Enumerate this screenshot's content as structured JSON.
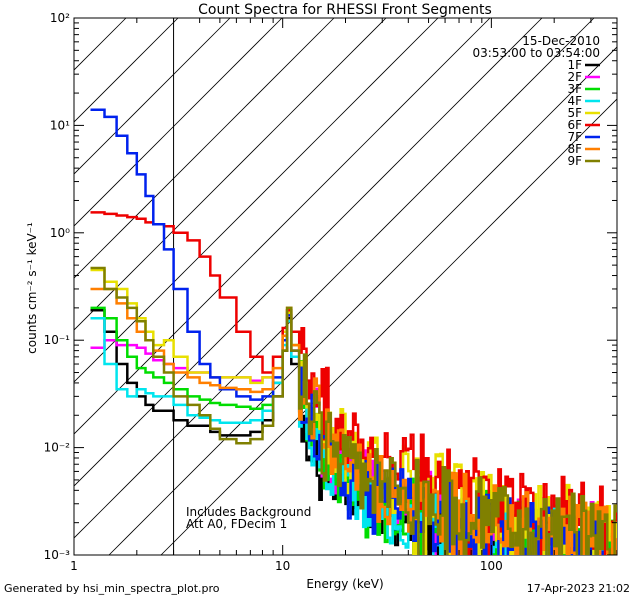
{
  "footer": {
    "left": "Generated by hsi_min_spectra_plot.pro",
    "right": "17-Apr-2023 21:02"
  },
  "chart_data": {
    "type": "line",
    "title": "Count Spectra for RHESSI Front Segments",
    "xlabel": "Energy (keV)",
    "ylabel": "counts cm⁻² s⁻¹ keV⁻¹",
    "xscale": "log",
    "yscale": "log",
    "xlim": [
      1,
      400
    ],
    "ylim": [
      0.001,
      100
    ],
    "x_ticks": [
      "1",
      "10",
      "100"
    ],
    "y_ticks": [
      "10⁻³",
      "10⁻²",
      "10⁻¹",
      "10⁰",
      "10¹",
      "10²"
    ],
    "date": "15-Dec-2010",
    "time_range": "03:53:00 to 03:54:00",
    "annotations": [
      "Includes Background",
      "Att A0, FDecim 1"
    ],
    "hatched_region_xlim": [
      1,
      3
    ],
    "legend_position": "top-right",
    "series": [
      {
        "name": "1F",
        "color": "#000000",
        "x": [
          1.2,
          1.4,
          1.6,
          1.8,
          2,
          2.2,
          2.4,
          2.7,
          3,
          3.5,
          4,
          4.5,
          5,
          6,
          7,
          8,
          9,
          10,
          10.5,
          11,
          12,
          13,
          15,
          17,
          20,
          25,
          30,
          40,
          50,
          60,
          70,
          80,
          100,
          120,
          150,
          200,
          250,
          300,
          350,
          400
        ],
        "y": [
          0.19,
          0.12,
          0.06,
          0.04,
          0.03,
          0.025,
          0.022,
          0.022,
          0.018,
          0.016,
          0.016,
          0.014,
          0.013,
          0.013,
          0.014,
          0.018,
          0.03,
          0.08,
          0.16,
          0.06,
          0.025,
          0.012,
          0.007,
          0.005,
          0.004,
          0.003,
          0.0025,
          0.0022,
          0.002,
          0.0018,
          0.0016,
          0.0015,
          0.0014,
          0.0013,
          0.0012,
          0.0011,
          0.0011,
          0.001,
          0.001,
          0.001
        ]
      },
      {
        "name": "2F",
        "color": "#ff00ff",
        "x": [
          1.2,
          1.4,
          1.6,
          1.8,
          2,
          2.2,
          2.4,
          2.7,
          3,
          3.5,
          4,
          4.5,
          5,
          6,
          7,
          8,
          9,
          10,
          10.5,
          11,
          12,
          13,
          15,
          17,
          20,
          25,
          30,
          40,
          50,
          60,
          70,
          80,
          100,
          120,
          150,
          200,
          250,
          300,
          350,
          400
        ],
        "y": [
          0.085,
          0.1,
          0.09,
          0.09,
          0.085,
          0.075,
          0.065,
          0.06,
          0.055,
          0.05,
          0.05,
          0.045,
          0.045,
          0.045,
          0.042,
          0.045,
          0.07,
          0.12,
          0.17,
          0.08,
          0.04,
          0.02,
          0.011,
          0.008,
          0.006,
          0.004,
          0.0035,
          0.003,
          0.0028,
          0.0025,
          0.0023,
          0.0022,
          0.002,
          0.0019,
          0.0018,
          0.0016,
          0.0015,
          0.0014,
          0.0013,
          0.0012
        ]
      },
      {
        "name": "3F",
        "color": "#00dd00",
        "x": [
          1.2,
          1.4,
          1.6,
          1.8,
          2,
          2.2,
          2.4,
          2.7,
          3,
          3.5,
          4,
          4.5,
          5,
          6,
          7,
          8,
          9,
          10,
          10.5,
          11,
          12,
          13,
          15,
          17,
          20,
          25,
          30,
          40,
          50,
          60,
          70,
          80,
          100,
          120,
          150,
          200,
          250,
          300,
          350,
          400
        ],
        "y": [
          0.2,
          0.16,
          0.1,
          0.07,
          0.055,
          0.05,
          0.045,
          0.04,
          0.035,
          0.03,
          0.028,
          0.026,
          0.025,
          0.024,
          0.023,
          0.025,
          0.04,
          0.1,
          0.19,
          0.09,
          0.035,
          0.015,
          0.009,
          0.006,
          0.004,
          0.003,
          0.0027,
          0.0024,
          0.0022,
          0.002,
          0.0019,
          0.0018,
          0.0016,
          0.0015,
          0.0014,
          0.0013,
          0.0012,
          0.0011,
          0.0011,
          0.001
        ]
      },
      {
        "name": "4F",
        "color": "#00e5ee",
        "x": [
          1.2,
          1.4,
          1.6,
          1.8,
          2,
          2.2,
          2.4,
          2.7,
          3,
          3.5,
          4,
          4.5,
          5,
          6,
          7,
          8,
          9,
          10,
          10.5,
          11,
          12,
          13,
          15,
          17,
          20,
          25,
          30,
          40,
          50,
          60,
          70,
          80,
          100,
          120,
          150,
          200,
          250,
          300,
          350,
          400
        ],
        "y": [
          0.16,
          0.06,
          0.035,
          0.03,
          0.035,
          0.032,
          0.03,
          0.03,
          0.025,
          0.02,
          0.019,
          0.018,
          0.017,
          0.017,
          0.018,
          0.022,
          0.04,
          0.09,
          0.15,
          0.07,
          0.03,
          0.014,
          0.008,
          0.006,
          0.004,
          0.003,
          0.0026,
          0.0023,
          0.0021,
          0.0019,
          0.0018,
          0.0017,
          0.0015,
          0.0014,
          0.0013,
          0.0012,
          0.0011,
          0.0011,
          0.001,
          0.001
        ]
      },
      {
        "name": "5F",
        "color": "#e8e000",
        "x": [
          1.2,
          1.4,
          1.6,
          1.8,
          2,
          2.2,
          2.4,
          2.7,
          3,
          3.5,
          4,
          4.5,
          5,
          6,
          7,
          8,
          9,
          10,
          10.5,
          11,
          12,
          13,
          15,
          17,
          20,
          25,
          30,
          40,
          50,
          60,
          70,
          80,
          100,
          120,
          150,
          200,
          250,
          300,
          350,
          400
        ],
        "y": [
          0.45,
          0.35,
          0.3,
          0.22,
          0.16,
          0.12,
          0.09,
          0.1,
          0.07,
          0.05,
          0.05,
          0.045,
          0.045,
          0.045,
          0.04,
          0.045,
          0.07,
          0.12,
          0.18,
          0.09,
          0.045,
          0.025,
          0.015,
          0.011,
          0.008,
          0.006,
          0.005,
          0.0045,
          0.004,
          0.0035,
          0.0032,
          0.003,
          0.0028,
          0.0025,
          0.0023,
          0.002,
          0.0018,
          0.0016,
          0.0015,
          0.0013
        ]
      },
      {
        "name": "6F",
        "color": "#ee0000",
        "x": [
          1.2,
          1.4,
          1.6,
          1.8,
          2,
          2.2,
          2.4,
          2.7,
          3,
          3.5,
          4,
          4.5,
          5,
          6,
          7,
          8,
          9,
          10,
          10.5,
          11,
          12,
          13,
          15,
          17,
          20,
          25,
          30,
          40,
          50,
          60,
          70,
          80,
          100,
          120,
          150,
          200,
          250,
          300,
          350,
          400
        ],
        "y": [
          1.55,
          1.5,
          1.45,
          1.4,
          1.35,
          1.25,
          1.2,
          1.15,
          1.0,
          0.85,
          0.6,
          0.4,
          0.25,
          0.12,
          0.07,
          0.05,
          0.07,
          0.13,
          0.19,
          0.12,
          0.07,
          0.04,
          0.025,
          0.018,
          0.012,
          0.009,
          0.007,
          0.006,
          0.005,
          0.0045,
          0.004,
          0.0038,
          0.0034,
          0.003,
          0.0027,
          0.0024,
          0.0022,
          0.002,
          0.0018,
          0.0016
        ]
      },
      {
        "name": "7F",
        "color": "#0022ee",
        "x": [
          1.2,
          1.4,
          1.6,
          1.8,
          2,
          2.2,
          2.4,
          2.7,
          3,
          3.5,
          4,
          4.5,
          5,
          6,
          7,
          8,
          9,
          10,
          10.5,
          11,
          12,
          13,
          15,
          17,
          20,
          25,
          30,
          40,
          50,
          60,
          70,
          80,
          100,
          120,
          150,
          200,
          250,
          300,
          350,
          400
        ],
        "y": [
          14,
          12,
          8,
          5.5,
          3.5,
          2.2,
          1.2,
          0.7,
          0.3,
          0.12,
          0.06,
          0.045,
          0.035,
          0.03,
          0.028,
          0.03,
          0.045,
          0.1,
          0.17,
          0.08,
          0.035,
          0.016,
          0.009,
          0.006,
          0.0045,
          0.0035,
          0.003,
          0.0026,
          0.0024,
          0.0022,
          0.002,
          0.0019,
          0.0017,
          0.0016,
          0.0015,
          0.0014,
          0.0013,
          0.0012,
          0.0011,
          0.001
        ]
      },
      {
        "name": "8F",
        "color": "#ff7f00",
        "x": [
          1.2,
          1.4,
          1.6,
          1.8,
          2,
          2.2,
          2.4,
          2.7,
          3,
          3.5,
          4,
          4.5,
          5,
          6,
          7,
          8,
          9,
          10,
          10.5,
          11,
          12,
          13,
          15,
          17,
          20,
          25,
          30,
          40,
          50,
          60,
          70,
          80,
          100,
          120,
          150,
          200,
          250,
          300,
          350,
          400
        ],
        "y": [
          0.3,
          0.3,
          0.22,
          0.16,
          0.12,
          0.1,
          0.08,
          0.06,
          0.05,
          0.045,
          0.04,
          0.038,
          0.036,
          0.035,
          0.033,
          0.035,
          0.055,
          0.11,
          0.2,
          0.09,
          0.04,
          0.02,
          0.012,
          0.009,
          0.006,
          0.0045,
          0.004,
          0.0035,
          0.003,
          0.0028,
          0.0026,
          0.0024,
          0.0022,
          0.002,
          0.0019,
          0.0017,
          0.0016,
          0.0015,
          0.0014,
          0.0013
        ]
      },
      {
        "name": "9F",
        "color": "#808000",
        "x": [
          1.2,
          1.4,
          1.6,
          1.8,
          2,
          2.2,
          2.4,
          2.7,
          3,
          3.5,
          4,
          4.5,
          5,
          6,
          7,
          8,
          9,
          10,
          10.5,
          11,
          12,
          13,
          15,
          17,
          20,
          25,
          30,
          40,
          50,
          60,
          70,
          80,
          100,
          120,
          150,
          200,
          250,
          300,
          350,
          400
        ],
        "y": [
          0.47,
          0.3,
          0.25,
          0.2,
          0.15,
          0.1,
          0.07,
          0.05,
          0.03,
          0.025,
          0.02,
          0.015,
          0.012,
          0.011,
          0.012,
          0.016,
          0.03,
          0.08,
          0.2,
          0.08,
          0.035,
          0.018,
          0.01,
          0.008,
          0.006,
          0.0045,
          0.004,
          0.0035,
          0.003,
          0.0028,
          0.0026,
          0.0024,
          0.0022,
          0.002,
          0.0019,
          0.0017,
          0.0016,
          0.0015,
          0.0014,
          0.0013
        ]
      }
    ]
  }
}
